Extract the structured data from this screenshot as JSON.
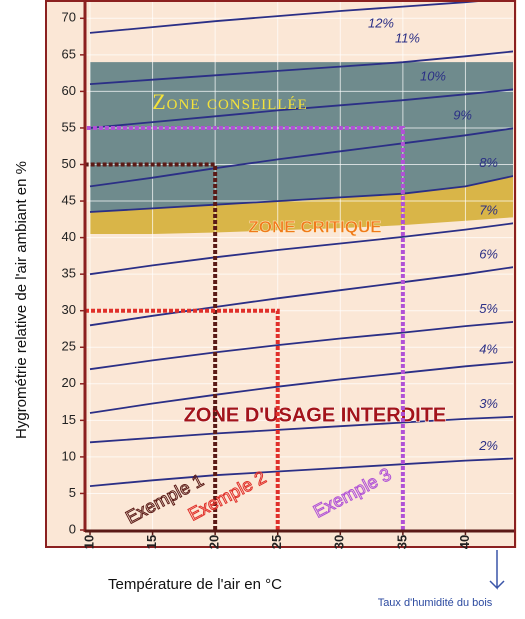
{
  "chart_data": {
    "type": "line",
    "y_label": "Hygrométrie relative de l'air ambiant en %",
    "x_label": "Température de l'air en °C",
    "annotation": "Taux d'humidité du bois",
    "xlim": [
      9.6,
      43.8
    ],
    "ylim": [
      0,
      71
    ],
    "xticks": [
      10,
      15,
      20,
      25,
      30,
      35,
      40
    ],
    "yticks": [
      0,
      5,
      10,
      15,
      20,
      25,
      30,
      35,
      40,
      45,
      50,
      55,
      60,
      65,
      70
    ],
    "grid": true,
    "x": [
      10,
      15,
      20,
      25,
      30,
      35,
      40,
      44
    ],
    "series": [
      {
        "name": "2%",
        "color": "#2b2f86",
        "values": [
          6,
          6.8,
          7.5,
          8,
          8.5,
          9,
          9.5,
          9.8
        ]
      },
      {
        "name": "3%",
        "color": "#2b2f86",
        "values": [
          12,
          12.6,
          13.2,
          13.7,
          14.2,
          14.7,
          15.2,
          15.5
        ]
      },
      {
        "name": "4%",
        "color": "#2b2f86",
        "values": [
          16,
          17.3,
          18.5,
          19.6,
          20.6,
          21.5,
          22.4,
          23
        ]
      },
      {
        "name": "5%",
        "color": "#2b2f86",
        "values": [
          22,
          23.2,
          24.3,
          25.3,
          26.2,
          27,
          27.9,
          28.5
        ]
      },
      {
        "name": "6%",
        "color": "#2b2f86",
        "values": [
          28,
          29.3,
          30.5,
          31.7,
          32.8,
          33.9,
          35,
          36
        ]
      },
      {
        "name": "7%",
        "color": "#2b2f86",
        "values": [
          35,
          36.2,
          37.3,
          38.3,
          39.2,
          40.1,
          41.1,
          42
        ]
      },
      {
        "name": "8%",
        "color": "#2b2f86",
        "values": [
          43.5,
          44,
          44.5,
          45,
          45.5,
          46,
          47,
          48.5
        ]
      },
      {
        "name": "9%",
        "color": "#2b2f86",
        "values": [
          47,
          48.2,
          49.5,
          50.7,
          51.8,
          52.9,
          54,
          55
        ]
      },
      {
        "name": "10%",
        "color": "#2b2f86",
        "values": [
          55,
          55.8,
          56.6,
          57.4,
          58.1,
          58.8,
          59.6,
          60.3
        ]
      },
      {
        "name": "11%",
        "color": "#2b2f86",
        "values": [
          61,
          61.6,
          62.2,
          62.8,
          63.4,
          64,
          64.8,
          65.5
        ]
      },
      {
        "name": "12%",
        "color": "#2b2f86",
        "values": [
          68,
          68.8,
          69.6,
          70.3,
          71,
          71.6,
          72.2,
          72.8
        ]
      }
    ],
    "zones": [
      {
        "name": "Zone conseillée",
        "color": "#6f8b8d",
        "upper": [
          64,
          64,
          64,
          64,
          64,
          64,
          64,
          64
        ],
        "lower": [
          43.5,
          44,
          44.5,
          45,
          45.5,
          46,
          47,
          48.5
        ]
      },
      {
        "name": "ZONE CRITIQUE",
        "color": "#d9b548",
        "upper": [
          43.5,
          44,
          44.5,
          45,
          45.5,
          46,
          47,
          48.5
        ],
        "lower": [
          40.5,
          40.5,
          40.7,
          41,
          41.3,
          41.7,
          42.3,
          42.8
        ]
      }
    ],
    "forbidden_zone": "ZONE D'USAGE INTERDITE",
    "examples": [
      {
        "label": "Exemple 1",
        "x": 20,
        "y": 50,
        "color": "#5a1a16"
      },
      {
        "label": "Exemple 2",
        "x": 25,
        "y": 30,
        "color": "#e0302a"
      },
      {
        "label": "Exemple 3",
        "x": 35,
        "y": 55,
        "color": "#b051d6"
      }
    ]
  }
}
